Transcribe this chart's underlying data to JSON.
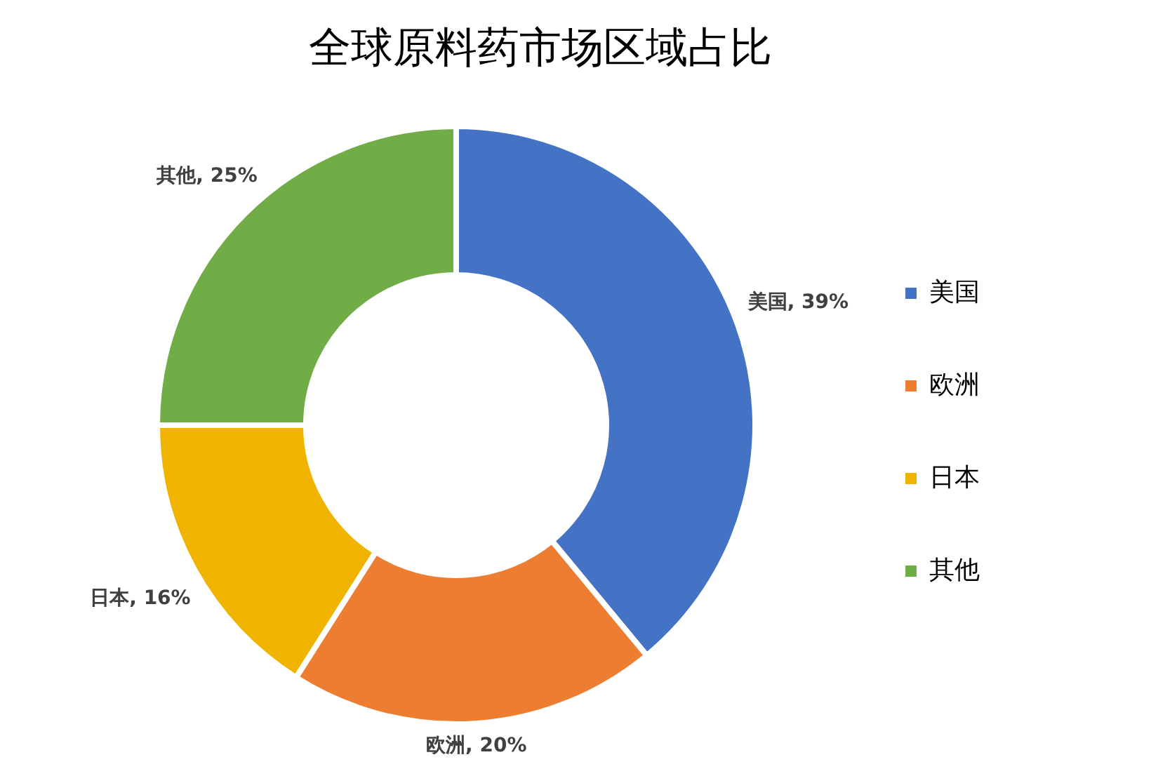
{
  "chart_data": {
    "type": "donut",
    "title": "全球原料药市场区域占比",
    "categories": [
      "美国",
      "欧洲",
      "日本",
      "其他"
    ],
    "values": [
      39,
      20,
      16,
      25
    ],
    "colors": [
      "#4472c4",
      "#ed7d31",
      "#f0b400",
      "#70ad47"
    ],
    "value_labels": [
      "美国, 39%",
      "欧洲, 20%",
      "日本, 16%",
      "其他, 25%"
    ],
    "legend": "right"
  }
}
